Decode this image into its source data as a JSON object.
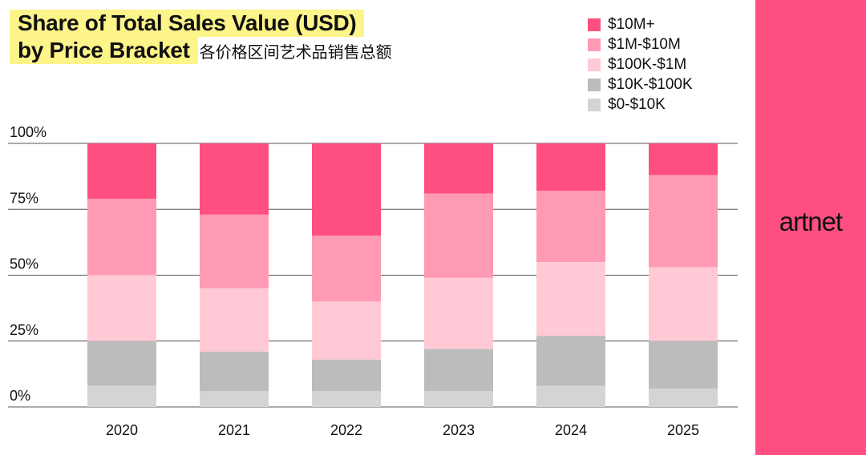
{
  "title": {
    "line1": "Share of Total Sales Value (USD)",
    "line2": "by Price Bracket",
    "chinese": "各价格区间艺术品销售总额"
  },
  "brand": {
    "logo_text": "artnet",
    "panel_color": "#ff4f80"
  },
  "chart_data": {
    "type": "bar",
    "stacked": true,
    "categories": [
      "2020",
      "2021",
      "2022",
      "2023",
      "2024",
      "2025"
    ],
    "y_ticks": [
      "100%",
      "75%",
      "50%",
      "25%",
      "0%"
    ],
    "ylim": [
      0,
      100
    ],
    "grid": true,
    "legend_position": "top-right",
    "series": [
      {
        "name": "$0-$10K",
        "color": "#d4d4d4",
        "values": [
          8,
          6,
          6,
          6,
          8,
          7
        ]
      },
      {
        "name": "$10K-$100K",
        "color": "#bcbcbc",
        "values": [
          17,
          15,
          12,
          16,
          19,
          18
        ]
      },
      {
        "name": "$100K-$1M",
        "color": "#ffcad6",
        "values": [
          25,
          24,
          22,
          27,
          28,
          28
        ]
      },
      {
        "name": "$1M-$10M",
        "color": "#ff9ab5",
        "values": [
          29,
          28,
          25,
          32,
          27,
          35
        ]
      },
      {
        "name": "$10M+",
        "color": "#ff4f80",
        "values": [
          21,
          27,
          35,
          19,
          18,
          12
        ]
      }
    ]
  }
}
